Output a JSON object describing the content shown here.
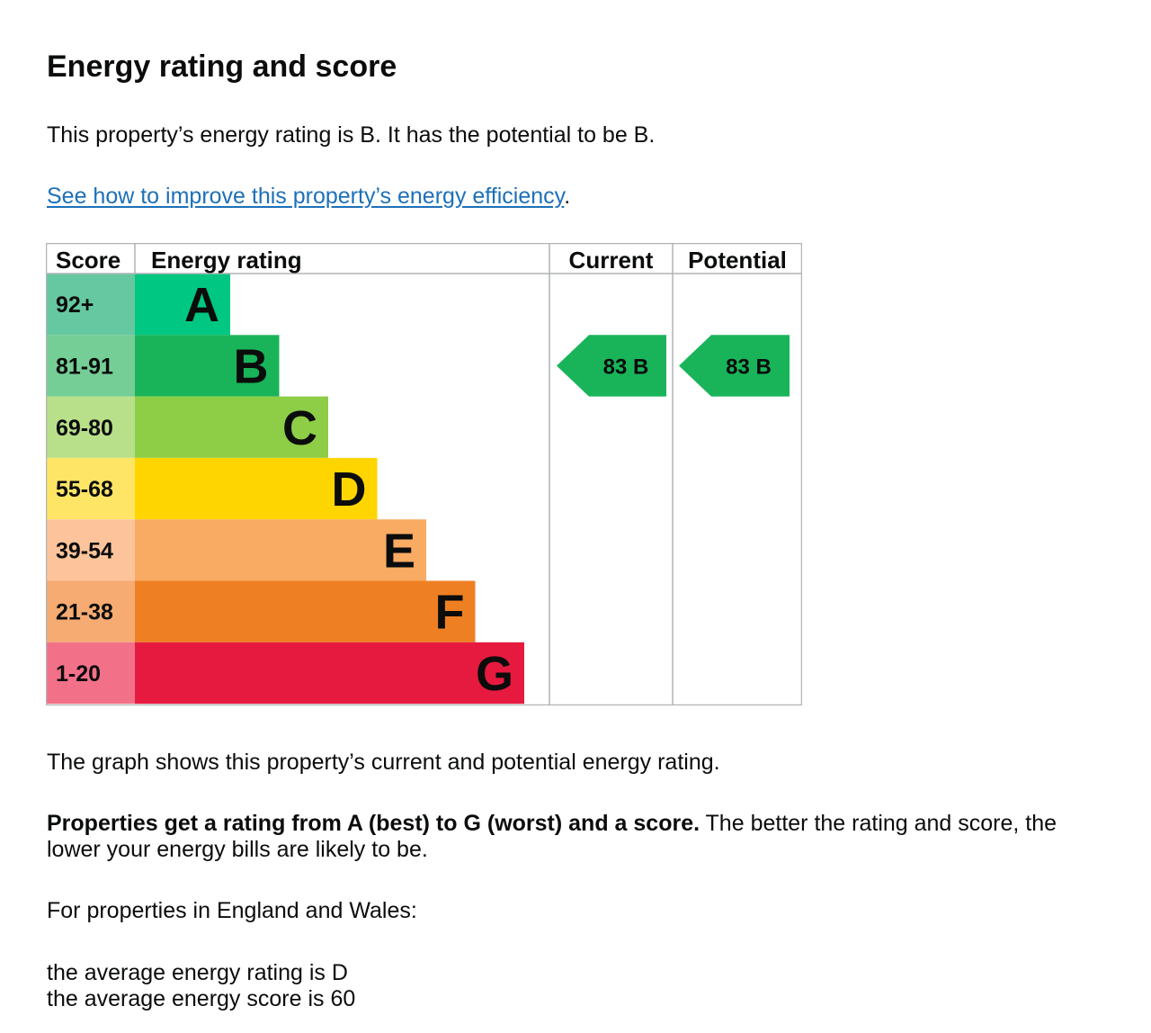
{
  "heading": "Energy rating and score",
  "intro": "This property’s energy rating is B. It has the potential to be B.",
  "improve_link": {
    "label": "See how to improve this property’s energy efficiency",
    "suffix": "."
  },
  "chart_data": {
    "type": "table",
    "columns": [
      "Score",
      "Energy rating",
      "Current",
      "Potential"
    ],
    "bands": [
      {
        "score": "92+",
        "letter": "A",
        "color": "#008054",
        "bar_color": "#00c781",
        "score_bg": "#66c8a0"
      },
      {
        "score": "81-91",
        "letter": "B",
        "color": "#19b459",
        "bar_color": "#19b459",
        "score_bg": "#75ce96"
      },
      {
        "score": "69-80",
        "letter": "C",
        "color": "#8dce46",
        "bar_color": "#8dce46",
        "score_bg": "#b8e08a"
      },
      {
        "score": "55-68",
        "letter": "D",
        "color": "#ffd500",
        "bar_color": "#ffd500",
        "score_bg": "#ffe566"
      },
      {
        "score": "39-54",
        "letter": "E",
        "color": "#fcaa65",
        "bar_color": "#f9ab63",
        "score_bg": "#fdc49b"
      },
      {
        "score": "21-38",
        "letter": "F",
        "color": "#ef8023",
        "bar_color": "#ee8023",
        "score_bg": "#f5ab72"
      },
      {
        "score": "1-20",
        "letter": "G",
        "color": "#e9153b",
        "bar_color": "#e61a3f",
        "score_bg": "#f27189"
      }
    ],
    "current": {
      "score": 83,
      "rating": "B",
      "color": "#19b459"
    },
    "potential": {
      "score": 83,
      "rating": "B",
      "color": "#19b459"
    }
  },
  "graph_caption": "The graph shows this property’s current and potential energy rating.",
  "explain_bold": "Properties get a rating from A (best) to G (worst) and a score.",
  "explain_rest_line1": " The better the rating and score, the",
  "explain_rest_line2": "lower your energy bills are likely to be.",
  "region_intro": "For properties in England and Wales:",
  "averages": {
    "rating_text": "the average energy rating is D",
    "score_text": "the average energy score is 60"
  }
}
